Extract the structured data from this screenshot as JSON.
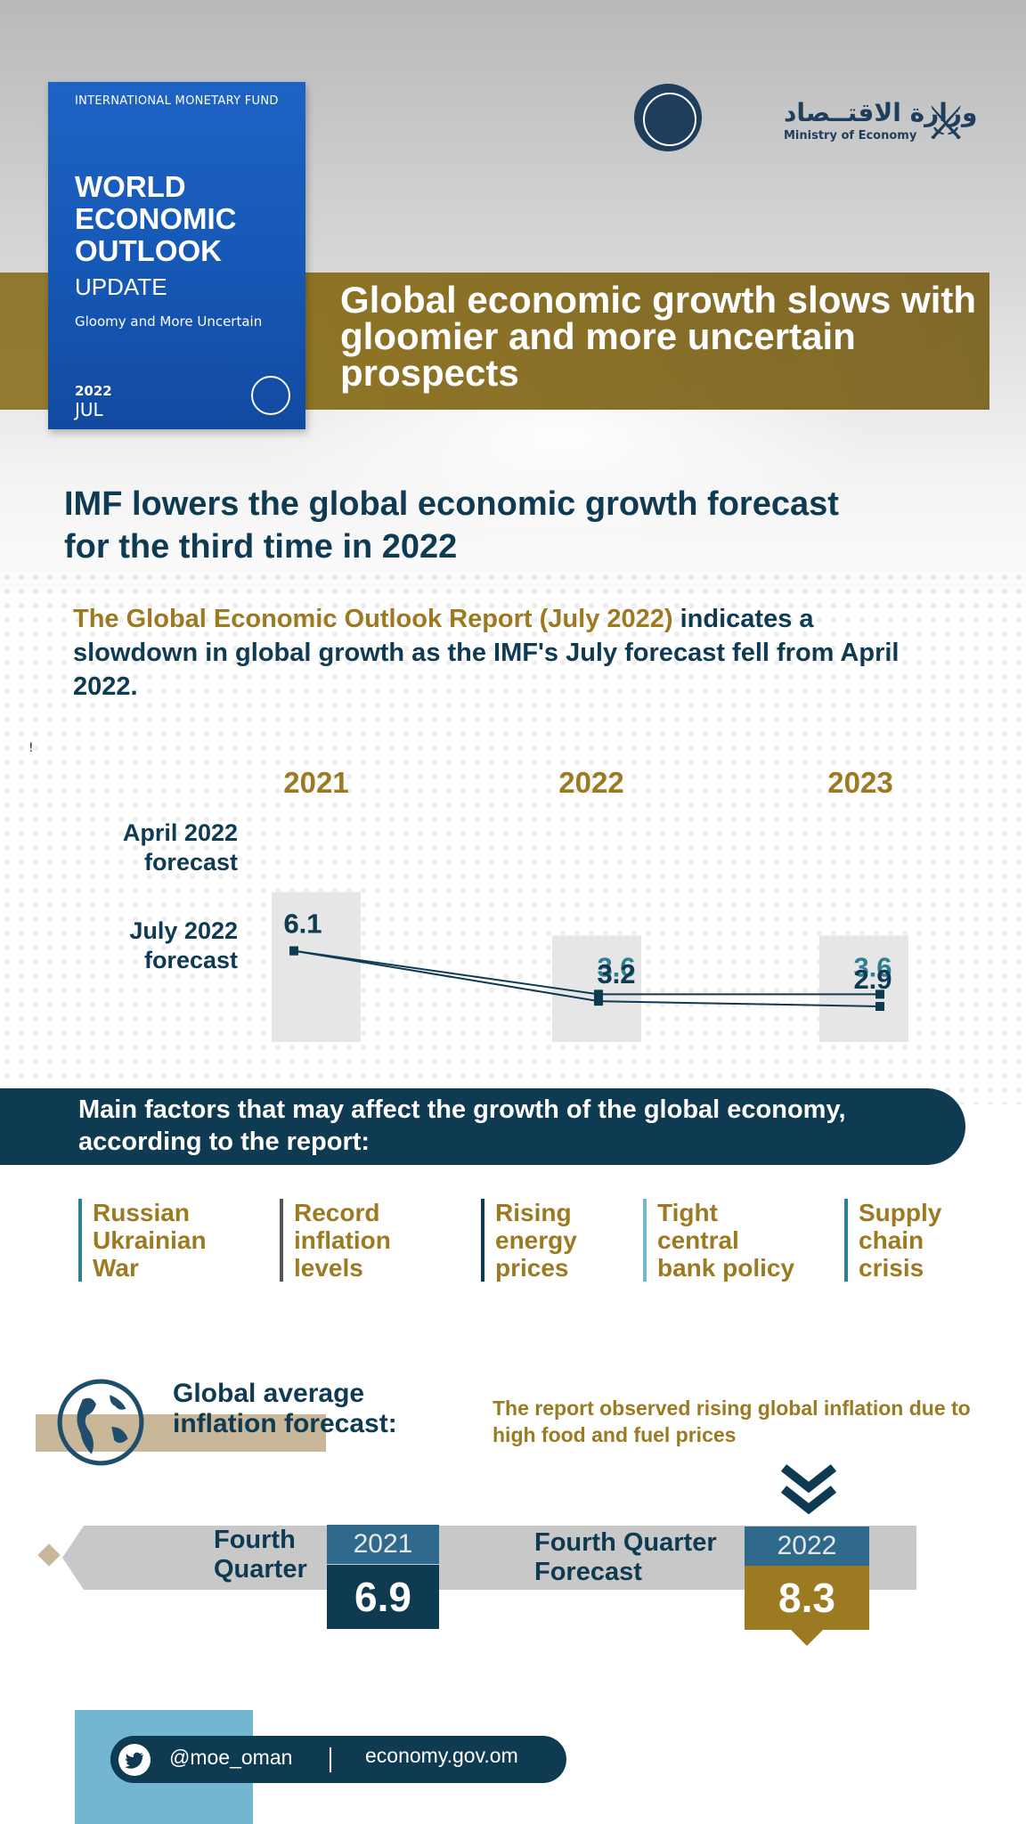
{
  "cover": {
    "org": "INTERNATIONAL MONETARY FUND",
    "title_lines": [
      "WORLD",
      "ECONOMIC",
      "OUTLOOK"
    ],
    "update": "UPDATE",
    "subtitle": "Gloomy and More Uncertain",
    "year": "2022",
    "month": "JUL"
  },
  "logos": {
    "imf_icon": "imf-seal-icon",
    "ministry_arabic": "وزارة الاقتــصاد",
    "ministry_english": "Ministry of Economy",
    "emblem_icon": "oman-emblem-icon"
  },
  "headline": "Global economic growth slows with gloomier and more uncertain prospects",
  "section_title": "IMF lowers the global economic growth forecast for the third time in 2022",
  "intro": {
    "highlight": "The Global Economic Outlook Report (July 2022)",
    "rest": " indicates a slowdown in global growth as the IMF's July forecast fell from April 2022."
  },
  "stray_mark": "!",
  "chart_data": {
    "type": "line",
    "categories": [
      "2021",
      "2022",
      "2023"
    ],
    "series": [
      {
        "name": "April 2022 forecast",
        "values": [
          6.1,
          3.6,
          3.6
        ]
      },
      {
        "name": "July 2022 forecast",
        "values": [
          6.1,
          3.2,
          2.9
        ]
      }
    ],
    "row_labels": [
      [
        "April 2022",
        "forecast"
      ],
      [
        "July 2022",
        "forecast"
      ]
    ],
    "colors": {
      "april_text": "#2f7f93",
      "july_text": "#0e3a52",
      "line": "#0e3a52",
      "year": "#9b7a22",
      "column": "#e6e6e6"
    }
  },
  "factors": {
    "title": "Main factors that may affect the growth of the global economy, according to the report:",
    "items": [
      {
        "lines": [
          "Russian",
          "Ukrainian",
          "War"
        ],
        "bar_color": "#2f7f93"
      },
      {
        "lines": [
          "Record",
          "inflation",
          "levels"
        ],
        "bar_color": "#555555"
      },
      {
        "lines": [
          "Rising",
          "energy",
          "prices"
        ],
        "bar_color": "#0e3a52"
      },
      {
        "lines": [
          "Tight",
          "central",
          "bank policy"
        ],
        "bar_color": "#74b6d2"
      },
      {
        "lines": [
          "Supply",
          "chain",
          "crisis"
        ],
        "bar_color": "#2f7f93"
      }
    ]
  },
  "inflation": {
    "title_lines": [
      "Global average",
      "inflation forecast:"
    ],
    "note": "The report observed rising global inflation due to high food and fuel prices",
    "q4_label_lines": [
      "Fourth",
      "Quarter"
    ],
    "q4_year": "2021",
    "q4_value": "6.9",
    "forecast_label_lines": [
      "Fourth Quarter",
      "Forecast"
    ],
    "forecast_year": "2022",
    "forecast_value": "8.3",
    "colors": {
      "dark": "#0e3a52",
      "gold": "#9b7a22",
      "tab": "#2f6a8c"
    }
  },
  "footer": {
    "twitter_icon": "twitter-bird-icon",
    "handle": "@moe_oman",
    "website": "economy.gov.om"
  }
}
